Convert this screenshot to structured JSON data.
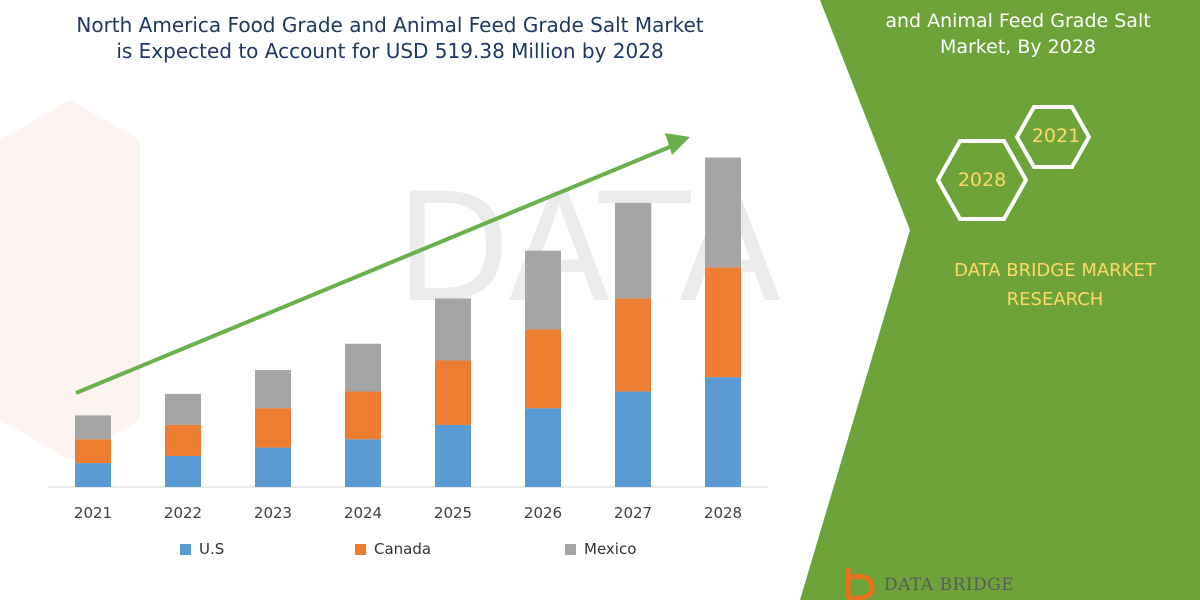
{
  "header": {
    "title_line1": "North America Food Grade and Animal Feed Grade Salt Market",
    "title_line2": "is Expected to Account for USD 519.38 Million by 2028"
  },
  "side_panel": {
    "title_line1": "and Animal Feed Grade Salt",
    "title_line2": "Market, By 2028",
    "hex_years": [
      "2021",
      "2028"
    ],
    "brand_line1": "DATA BRIDGE MARKET",
    "brand_line2": "RESEARCH",
    "footer_logo_text": "DATA BRIDGE",
    "colors": {
      "panel": "#6ea33a",
      "accent": "#ffd966"
    }
  },
  "chart_data": {
    "type": "bar",
    "stacked": true,
    "categories": [
      "2021",
      "2022",
      "2023",
      "2024",
      "2025",
      "2026",
      "2027",
      "2028"
    ],
    "series": [
      {
        "name": "U.S",
        "color": "#5b9bd5",
        "values": [
          1.0,
          1.3,
          1.65,
          2.0,
          2.6,
          3.3,
          4.0,
          4.6
        ]
      },
      {
        "name": "Canada",
        "color": "#ed7d31",
        "values": [
          1.0,
          1.3,
          1.65,
          2.0,
          2.7,
          3.3,
          3.9,
          4.6
        ]
      },
      {
        "name": "Mexico",
        "color": "#a5a5a5",
        "values": [
          1.0,
          1.3,
          1.6,
          2.0,
          2.6,
          3.3,
          4.0,
          4.6
        ]
      }
    ],
    "ylim": [
      0,
      14.2
    ],
    "grid": false,
    "legend": "bottom",
    "trend_arrow": true
  }
}
